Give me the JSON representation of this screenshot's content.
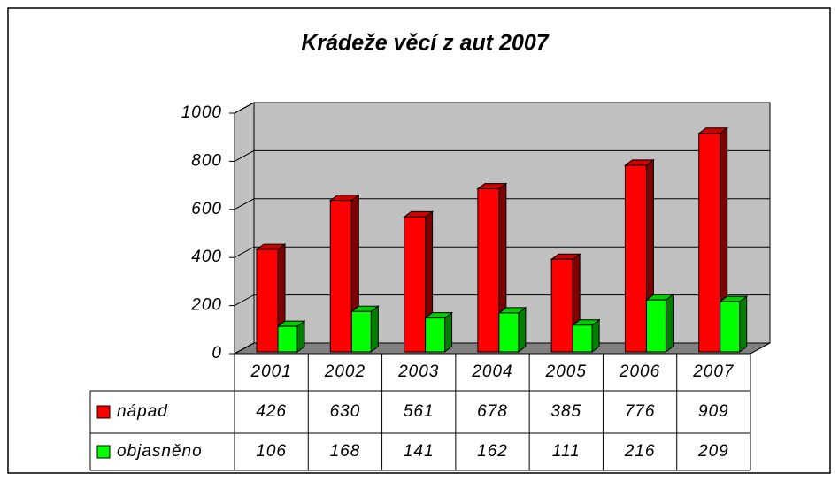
{
  "chart_data": {
    "type": "bar3d",
    "title": "Krádeže věcí z aut 2007",
    "categories": [
      "2001",
      "2002",
      "2003",
      "2004",
      "2005",
      "2006",
      "2007"
    ],
    "series": [
      {
        "name": "nápad",
        "color": "#ff0000",
        "values": [
          426,
          630,
          561,
          678,
          385,
          776,
          909
        ]
      },
      {
        "name": "objasněno",
        "color": "#00ff00",
        "values": [
          106,
          168,
          141,
          162,
          111,
          216,
          209
        ]
      }
    ],
    "ylim": [
      0,
      1000
    ],
    "yticks": [
      0,
      200,
      400,
      600,
      800,
      1000
    ],
    "grid": true
  }
}
